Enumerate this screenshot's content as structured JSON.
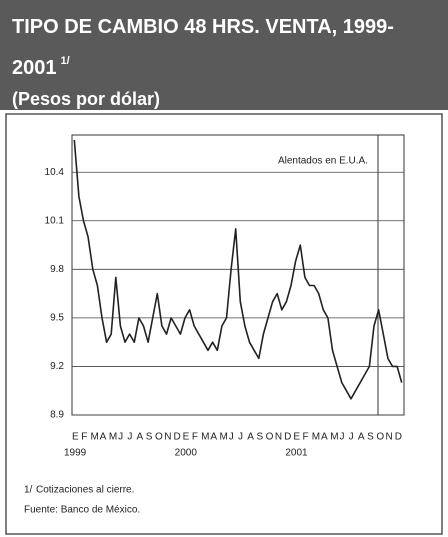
{
  "header": {
    "title": "TIPO DE CAMBIO 48 HRS. VENTA, 1999-2001",
    "note_marker": "1/",
    "subtitle": "(Pesos por dólar)"
  },
  "chart_data": {
    "type": "line",
    "annotation": "Alentados en E.U.A.",
    "categories": [
      "E",
      null,
      "F",
      null,
      "M",
      null,
      "A",
      null,
      "M",
      null,
      "J",
      null,
      "J",
      null,
      "A",
      null,
      "S",
      null,
      "O",
      null,
      "N",
      null,
      "D",
      null,
      "E",
      null,
      "F",
      null,
      "M",
      null,
      "A",
      null,
      "M",
      null,
      "J",
      null,
      "J",
      null,
      "A",
      null,
      "S",
      null,
      "O",
      null,
      "N",
      null,
      "D",
      null,
      "E",
      null,
      "F",
      null,
      "M",
      null,
      "A",
      null,
      "M",
      null,
      "J",
      null,
      "J",
      null,
      "A",
      null,
      "S",
      null,
      "O",
      null,
      "N",
      null,
      "D",
      null
    ],
    "years": [
      "1999",
      "2000",
      "2001"
    ],
    "series": [
      {
        "name": "Tipo de cambio",
        "color": "#222222",
        "values": [
          10.6,
          10.25,
          10.1,
          10.0,
          9.8,
          9.7,
          9.5,
          9.35,
          9.4,
          9.75,
          9.45,
          9.35,
          9.4,
          9.35,
          9.5,
          9.45,
          9.35,
          9.5,
          9.65,
          9.45,
          9.4,
          9.5,
          9.45,
          9.4,
          9.5,
          9.55,
          9.45,
          9.4,
          9.35,
          9.3,
          9.35,
          9.3,
          9.45,
          9.5,
          9.8,
          10.05,
          9.6,
          9.45,
          9.35,
          9.3,
          9.25,
          9.4,
          9.5,
          9.6,
          9.65,
          9.55,
          9.6,
          9.7,
          9.85,
          9.95,
          9.75,
          9.7,
          9.7,
          9.65,
          9.55,
          9.5,
          9.3,
          9.2,
          9.1,
          9.05,
          9.0,
          9.05,
          9.1,
          9.15,
          9.2,
          9.45,
          9.55,
          9.4,
          9.25,
          9.2,
          9.2,
          9.1
        ]
      }
    ],
    "ylim": [
      8.9,
      10.63
    ],
    "yticks": [
      8.9,
      9.2,
      9.5,
      9.8,
      10.1,
      10.4
    ],
    "grid": true
  },
  "footer": {
    "note_marker": "1/",
    "note": "Cotizaciones al cierre.",
    "source": "Fuente: Banco de México."
  }
}
